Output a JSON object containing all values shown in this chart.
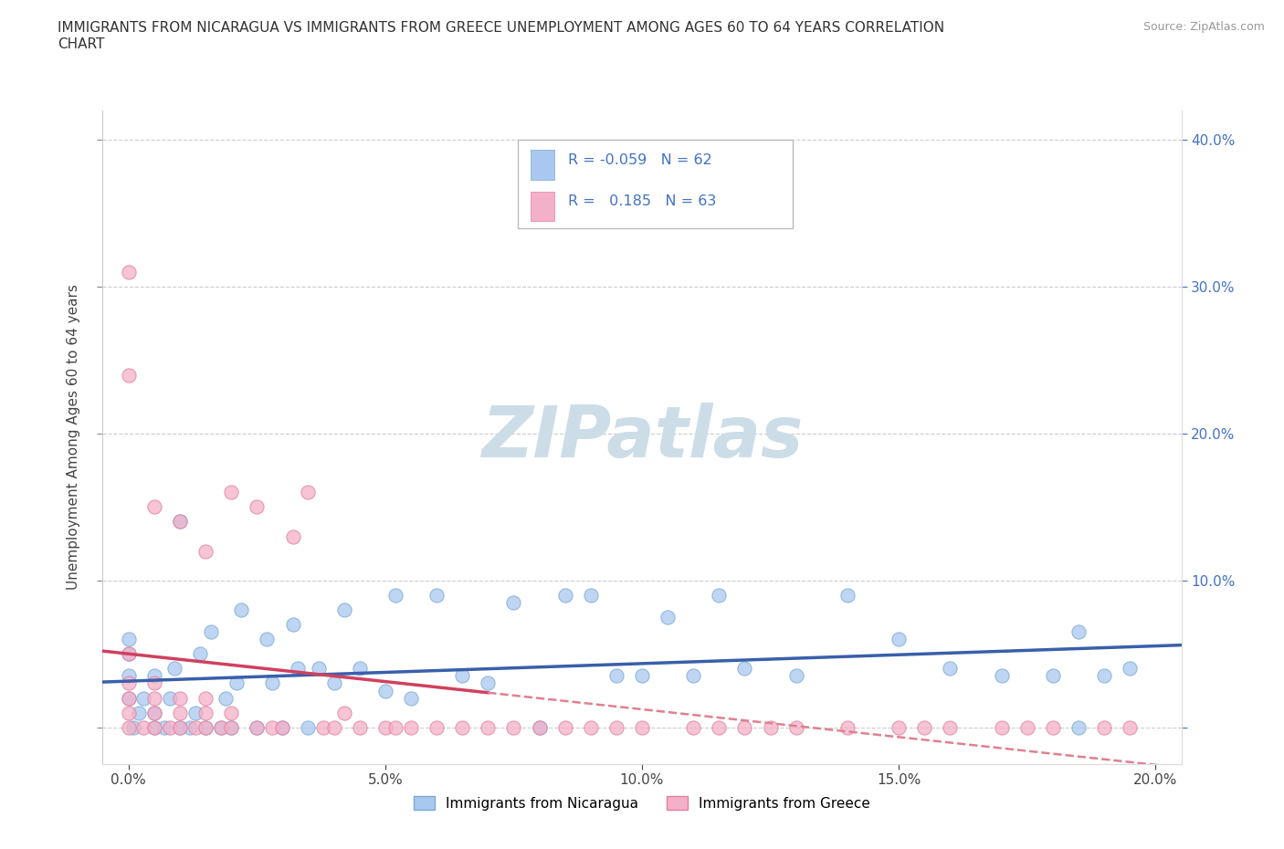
{
  "title": "IMMIGRANTS FROM NICARAGUA VS IMMIGRANTS FROM GREECE UNEMPLOYMENT AMONG AGES 60 TO 64 YEARS CORRELATION\nCHART",
  "source": "Source: ZipAtlas.com",
  "ylabel": "Unemployment Among Ages 60 to 64 years",
  "xlim": [
    -0.005,
    0.205
  ],
  "ylim": [
    -0.025,
    0.42
  ],
  "nicaragua_color": "#a8c8f0",
  "nicaragua_edge_color": "#7aaad0",
  "greece_color": "#f4b0c8",
  "greece_edge_color": "#e080a0",
  "nicaragua_line_color": "#3a5faa",
  "greece_line_color": "#d04060",
  "greece_dash_color": "#e08090",
  "R_nicaragua": -0.059,
  "N_nicaragua": 62,
  "R_greece": 0.185,
  "N_greece": 63,
  "watermark": "ZIPatlas",
  "watermark_color": "#ccdde8",
  "legend_label_nicaragua": "Immigrants from Nicaragua",
  "legend_label_greece": "Immigrants from Greece",
  "nicaragua_x": [
    0.0,
    0.0,
    0.0,
    0.0,
    0.001,
    0.002,
    0.003,
    0.005,
    0.005,
    0.005,
    0.007,
    0.008,
    0.009,
    0.01,
    0.01,
    0.012,
    0.013,
    0.014,
    0.015,
    0.016,
    0.018,
    0.019,
    0.02,
    0.021,
    0.022,
    0.025,
    0.027,
    0.028,
    0.03,
    0.032,
    0.033,
    0.035,
    0.037,
    0.04,
    0.042,
    0.045,
    0.05,
    0.052,
    0.055,
    0.06,
    0.065,
    0.07,
    0.075,
    0.08,
    0.085,
    0.09,
    0.095,
    0.1,
    0.105,
    0.11,
    0.115,
    0.12,
    0.13,
    0.14,
    0.15,
    0.16,
    0.17,
    0.18,
    0.185,
    0.19,
    0.195,
    0.185
  ],
  "nicaragua_y": [
    0.02,
    0.035,
    0.05,
    0.06,
    0.0,
    0.01,
    0.02,
    0.0,
    0.01,
    0.035,
    0.0,
    0.02,
    0.04,
    0.0,
    0.14,
    0.0,
    0.01,
    0.05,
    0.0,
    0.065,
    0.0,
    0.02,
    0.0,
    0.03,
    0.08,
    0.0,
    0.06,
    0.03,
    0.0,
    0.07,
    0.04,
    0.0,
    0.04,
    0.03,
    0.08,
    0.04,
    0.025,
    0.09,
    0.02,
    0.09,
    0.035,
    0.03,
    0.085,
    0.0,
    0.09,
    0.09,
    0.035,
    0.035,
    0.075,
    0.035,
    0.09,
    0.04,
    0.035,
    0.09,
    0.06,
    0.04,
    0.035,
    0.035,
    0.0,
    0.035,
    0.04,
    0.065
  ],
  "greece_x": [
    0.0,
    0.0,
    0.0,
    0.0,
    0.0,
    0.0,
    0.003,
    0.005,
    0.005,
    0.005,
    0.005,
    0.005,
    0.008,
    0.01,
    0.01,
    0.01,
    0.01,
    0.013,
    0.015,
    0.015,
    0.015,
    0.015,
    0.018,
    0.02,
    0.02,
    0.02,
    0.025,
    0.025,
    0.028,
    0.03,
    0.032,
    0.035,
    0.038,
    0.04,
    0.042,
    0.045,
    0.05,
    0.052,
    0.055,
    0.06,
    0.065,
    0.07,
    0.075,
    0.08,
    0.085,
    0.09,
    0.095,
    0.1,
    0.11,
    0.115,
    0.12,
    0.125,
    0.13,
    0.14,
    0.15,
    0.155,
    0.16,
    0.17,
    0.175,
    0.18,
    0.19,
    0.195,
    0.0
  ],
  "greece_y": [
    0.0,
    0.01,
    0.02,
    0.03,
    0.05,
    0.31,
    0.0,
    0.0,
    0.01,
    0.02,
    0.03,
    0.15,
    0.0,
    0.0,
    0.01,
    0.02,
    0.14,
    0.0,
    0.0,
    0.01,
    0.02,
    0.12,
    0.0,
    0.0,
    0.01,
    0.16,
    0.0,
    0.15,
    0.0,
    0.0,
    0.13,
    0.16,
    0.0,
    0.0,
    0.01,
    0.0,
    0.0,
    0.0,
    0.0,
    0.0,
    0.0,
    0.0,
    0.0,
    0.0,
    0.0,
    0.0,
    0.0,
    0.0,
    0.0,
    0.0,
    0.0,
    0.0,
    0.0,
    0.0,
    0.0,
    0.0,
    0.0,
    0.0,
    0.0,
    0.0,
    0.0,
    0.0,
    0.24
  ]
}
